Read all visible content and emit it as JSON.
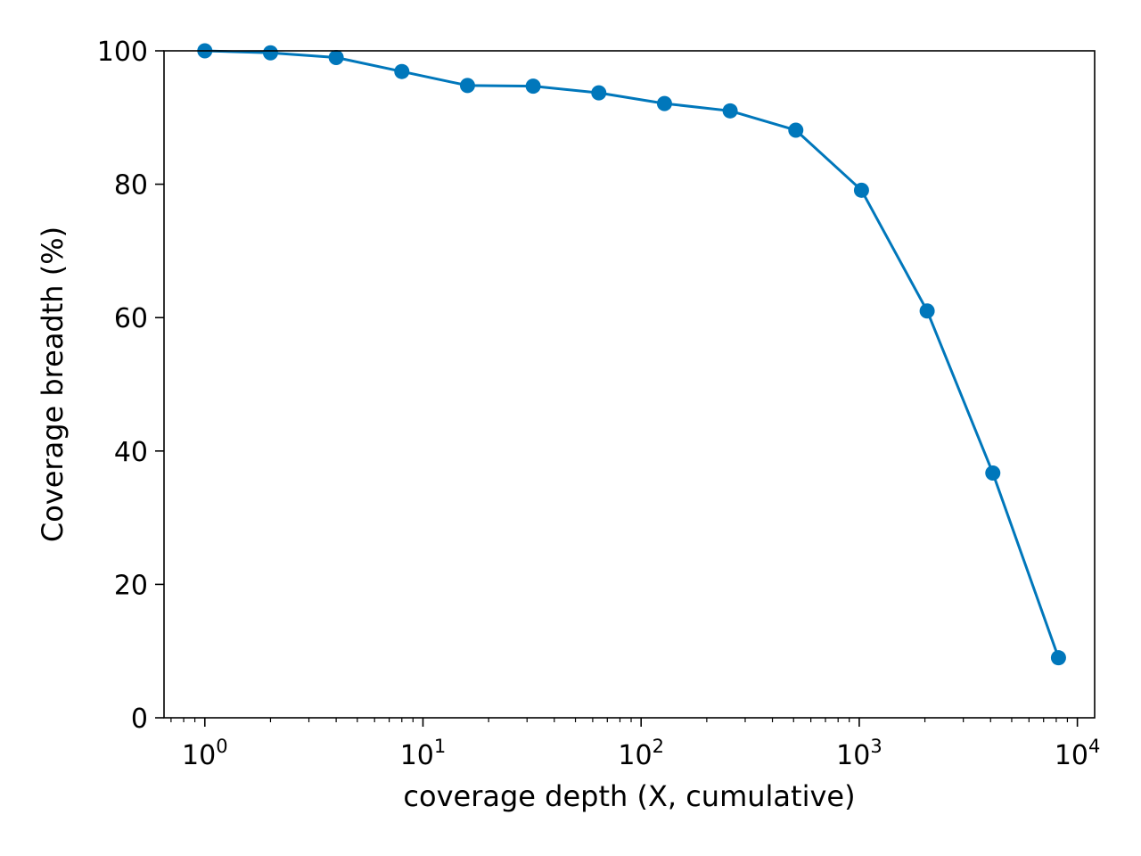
{
  "chart_data": {
    "type": "line",
    "title": "",
    "xlabel": "coverage depth (X, cumulative)",
    "ylabel": "Coverage breadth (%)",
    "xscale": "log",
    "xlim": [
      0.65,
      12000
    ],
    "ylim": [
      0,
      100
    ],
    "grid": false,
    "x_ticks": [
      {
        "base": "10",
        "exp": "0"
      },
      {
        "base": "10",
        "exp": "1"
      },
      {
        "base": "10",
        "exp": "2"
      },
      {
        "base": "10",
        "exp": "3"
      },
      {
        "base": "10",
        "exp": "4"
      }
    ],
    "y_ticks": [
      "0",
      "20",
      "40",
      "60",
      "80",
      "100"
    ],
    "series": [
      {
        "color": "#0077bb",
        "x": [
          1,
          2,
          4,
          8,
          16,
          32,
          64,
          128,
          256,
          512,
          1024,
          2048,
          4096,
          8192
        ],
        "y": [
          100,
          99.7,
          99.0,
          96.9,
          94.8,
          94.7,
          93.7,
          92.1,
          91.0,
          88.1,
          79.1,
          61.0,
          36.7,
          9.0
        ]
      }
    ]
  }
}
